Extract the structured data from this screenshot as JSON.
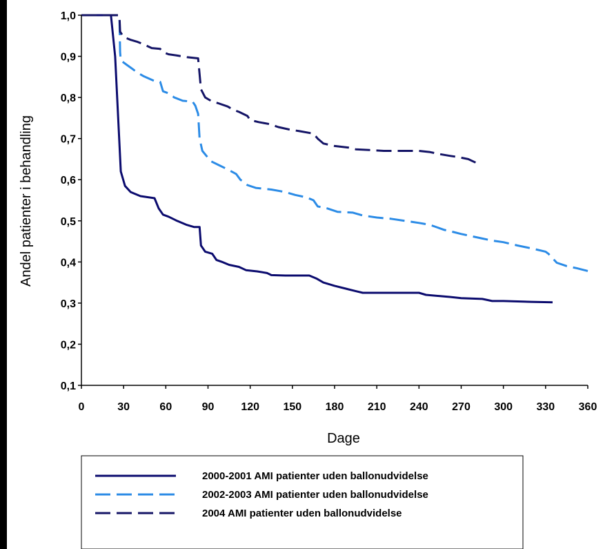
{
  "chart_data": {
    "type": "line",
    "title": "",
    "xlabel": "Dage",
    "ylabel": "Andel patienter i behandling",
    "xlim": [
      0,
      360
    ],
    "ylim": [
      0.1,
      1.0
    ],
    "x_ticks": [
      0,
      30,
      60,
      90,
      120,
      150,
      180,
      210,
      240,
      270,
      300,
      330,
      360
    ],
    "x_tick_labels": [
      "0",
      "30",
      "60",
      "90",
      "120",
      "150",
      "180",
      "210",
      "240",
      "270",
      "300",
      "330",
      "360"
    ],
    "y_ticks": [
      0.1,
      0.2,
      0.3,
      0.4,
      0.5,
      0.6,
      0.7,
      0.8,
      0.9,
      1.0
    ],
    "y_tick_labels": [
      "0,1",
      "0,2",
      "0,3",
      "0,4",
      "0,5",
      "0,6",
      "0,7",
      "0,8",
      "0,9",
      "1,0"
    ],
    "grid": false,
    "legend_position": "bottom",
    "series": [
      {
        "name": "2000-2001 AMI patienter uden ballonudvidelse",
        "color": "#0b0b6e",
        "style": "solid",
        "points": [
          [
            0,
            1.0
          ],
          [
            21,
            1.0
          ],
          [
            24,
            0.9
          ],
          [
            28,
            0.62
          ],
          [
            31,
            0.585
          ],
          [
            35,
            0.57
          ],
          [
            42,
            0.56
          ],
          [
            52,
            0.555
          ],
          [
            55,
            0.53
          ],
          [
            58,
            0.515
          ],
          [
            62,
            0.51
          ],
          [
            68,
            0.5
          ],
          [
            75,
            0.49
          ],
          [
            80,
            0.485
          ],
          [
            84,
            0.485
          ],
          [
            85,
            0.44
          ],
          [
            88,
            0.425
          ],
          [
            93,
            0.42
          ],
          [
            96,
            0.405
          ],
          [
            100,
            0.4
          ],
          [
            105,
            0.393
          ],
          [
            112,
            0.388
          ],
          [
            117,
            0.38
          ],
          [
            125,
            0.377
          ],
          [
            132,
            0.373
          ],
          [
            135,
            0.368
          ],
          [
            145,
            0.367
          ],
          [
            152,
            0.367
          ],
          [
            162,
            0.367
          ],
          [
            167,
            0.36
          ],
          [
            172,
            0.35
          ],
          [
            180,
            0.342
          ],
          [
            188,
            0.335
          ],
          [
            195,
            0.329
          ],
          [
            200,
            0.325
          ],
          [
            210,
            0.325
          ],
          [
            220,
            0.325
          ],
          [
            240,
            0.325
          ],
          [
            245,
            0.32
          ],
          [
            255,
            0.317
          ],
          [
            262,
            0.315
          ],
          [
            270,
            0.312
          ],
          [
            285,
            0.31
          ],
          [
            292,
            0.305
          ],
          [
            300,
            0.305
          ],
          [
            320,
            0.303
          ],
          [
            335,
            0.302
          ]
        ]
      },
      {
        "name": "2002-2003 AMI patienter uden ballonudvidelse",
        "color": "#2b8be6",
        "style": "dashed",
        "points": [
          [
            0,
            1.0
          ],
          [
            27,
            1.0
          ],
          [
            27.5,
            0.91
          ],
          [
            28,
            0.89
          ],
          [
            32,
            0.88
          ],
          [
            36,
            0.87
          ],
          [
            40,
            0.86
          ],
          [
            44,
            0.852
          ],
          [
            52,
            0.84
          ],
          [
            56,
            0.838
          ],
          [
            58,
            0.815
          ],
          [
            62,
            0.81
          ],
          [
            66,
            0.8
          ],
          [
            72,
            0.792
          ],
          [
            79,
            0.79
          ],
          [
            81,
            0.78
          ],
          [
            83,
            0.76
          ],
          [
            84,
            0.7
          ],
          [
            86,
            0.67
          ],
          [
            92,
            0.645
          ],
          [
            98,
            0.635
          ],
          [
            104,
            0.625
          ],
          [
            110,
            0.614
          ],
          [
            113,
            0.6
          ],
          [
            118,
            0.587
          ],
          [
            124,
            0.58
          ],
          [
            135,
            0.576
          ],
          [
            145,
            0.57
          ],
          [
            152,
            0.563
          ],
          [
            160,
            0.557
          ],
          [
            165,
            0.55
          ],
          [
            168,
            0.535
          ],
          [
            175,
            0.53
          ],
          [
            182,
            0.522
          ],
          [
            193,
            0.52
          ],
          [
            200,
            0.513
          ],
          [
            210,
            0.508
          ],
          [
            220,
            0.505
          ],
          [
            230,
            0.5
          ],
          [
            240,
            0.495
          ],
          [
            248,
            0.49
          ],
          [
            258,
            0.478
          ],
          [
            262,
            0.475
          ],
          [
            270,
            0.468
          ],
          [
            285,
            0.457
          ],
          [
            292,
            0.452
          ],
          [
            300,
            0.448
          ],
          [
            310,
            0.44
          ],
          [
            320,
            0.433
          ],
          [
            330,
            0.425
          ],
          [
            332,
            0.42
          ],
          [
            338,
            0.398
          ],
          [
            345,
            0.39
          ],
          [
            352,
            0.385
          ],
          [
            360,
            0.378
          ]
        ]
      },
      {
        "name": "2004 AMI patienter uden ballonudvidelse",
        "color": "#141466",
        "style": "dashed",
        "points": [
          [
            0,
            1.0
          ],
          [
            27,
            1.0
          ],
          [
            27.5,
            0.96
          ],
          [
            30,
            0.947
          ],
          [
            35,
            0.94
          ],
          [
            40,
            0.935
          ],
          [
            45,
            0.928
          ],
          [
            50,
            0.92
          ],
          [
            56,
            0.918
          ],
          [
            58,
            0.91
          ],
          [
            62,
            0.905
          ],
          [
            68,
            0.902
          ],
          [
            75,
            0.898
          ],
          [
            83,
            0.895
          ],
          [
            85,
            0.82
          ],
          [
            88,
            0.8
          ],
          [
            92,
            0.792
          ],
          [
            98,
            0.785
          ],
          [
            104,
            0.778
          ],
          [
            108,
            0.77
          ],
          [
            112,
            0.765
          ],
          [
            118,
            0.755
          ],
          [
            120,
            0.745
          ],
          [
            126,
            0.74
          ],
          [
            134,
            0.735
          ],
          [
            140,
            0.728
          ],
          [
            148,
            0.722
          ],
          [
            155,
            0.718
          ],
          [
            165,
            0.712
          ],
          [
            168,
            0.7
          ],
          [
            172,
            0.688
          ],
          [
            180,
            0.682
          ],
          [
            190,
            0.678
          ],
          [
            195,
            0.674
          ],
          [
            205,
            0.672
          ],
          [
            215,
            0.67
          ],
          [
            230,
            0.67
          ],
          [
            240,
            0.67
          ],
          [
            248,
            0.667
          ],
          [
            255,
            0.662
          ],
          [
            262,
            0.658
          ],
          [
            268,
            0.655
          ],
          [
            275,
            0.65
          ],
          [
            280,
            0.642
          ],
          [
            283,
            0.635
          ]
        ]
      }
    ]
  }
}
